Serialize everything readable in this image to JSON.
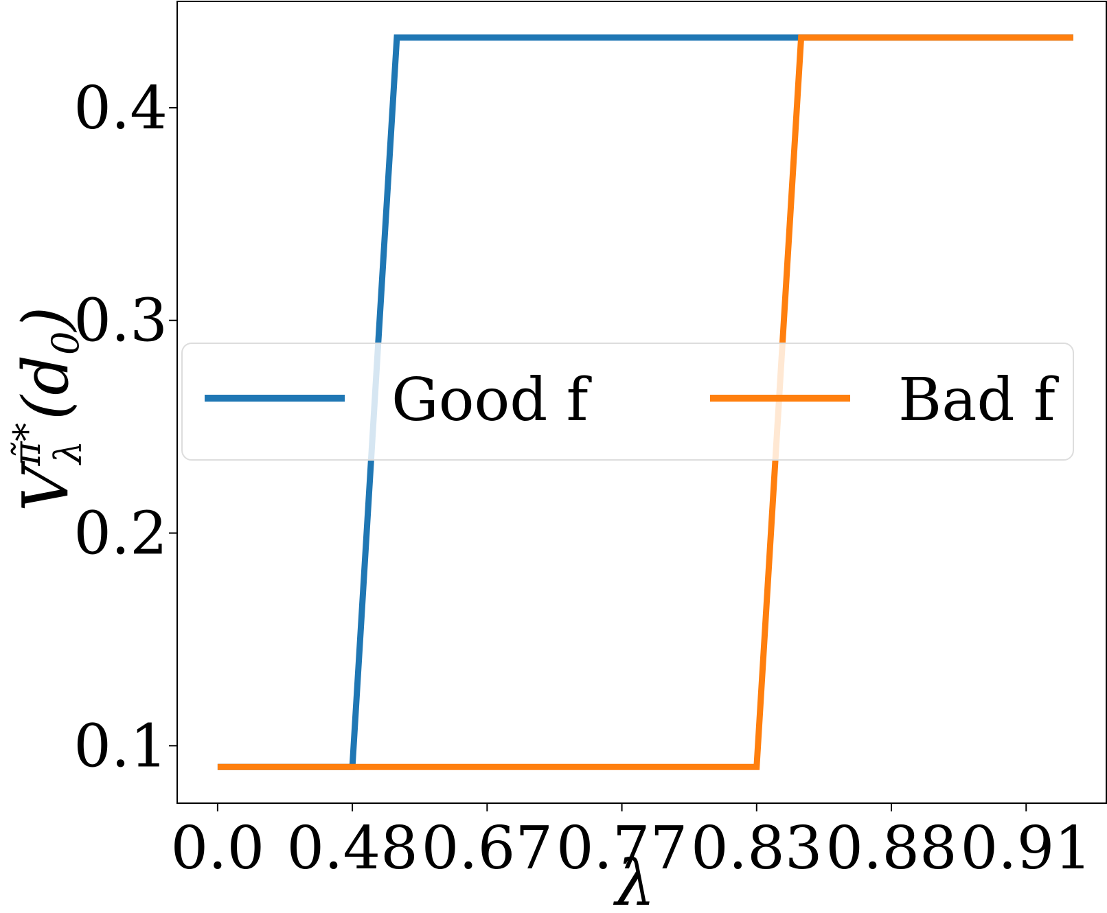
{
  "chart_data": {
    "type": "line",
    "xlabel": "λ",
    "ylabel": "V",
    "ylabel_sup": "π̃*",
    "ylabel_sub": "λ",
    "ylabel_arg": "(d",
    "ylabel_arg_sub": "0",
    "ylabel_arg_close": ")",
    "x_tick_labels": [
      "0.0",
      "0.48",
      "0.67",
      "0.77",
      "0.83",
      "0.88",
      "0.91"
    ],
    "y_ticks": [
      0.1,
      0.2,
      0.3,
      0.4
    ],
    "y_tick_labels": [
      "0.1",
      "0.2",
      "0.3",
      "0.4"
    ],
    "ylim": [
      0.073,
      0.45
    ],
    "xlim_index": [
      -0.3,
      6.6
    ],
    "series": [
      {
        "name": "Good f",
        "color": "#1f77b4",
        "x_index": [
          0,
          1,
          1.33,
          2,
          3,
          4,
          5,
          6.35
        ],
        "values": [
          0.09,
          0.09,
          0.433,
          0.433,
          0.433,
          0.433,
          0.433,
          0.433
        ]
      },
      {
        "name": "Bad f",
        "color": "#ff7f0e",
        "x_index": [
          0,
          1,
          2,
          3,
          4,
          4.33,
          5,
          6.35
        ],
        "values": [
          0.09,
          0.09,
          0.09,
          0.09,
          0.09,
          0.433,
          0.433,
          0.433
        ]
      }
    ],
    "legend_position": "center",
    "grid": false
  }
}
